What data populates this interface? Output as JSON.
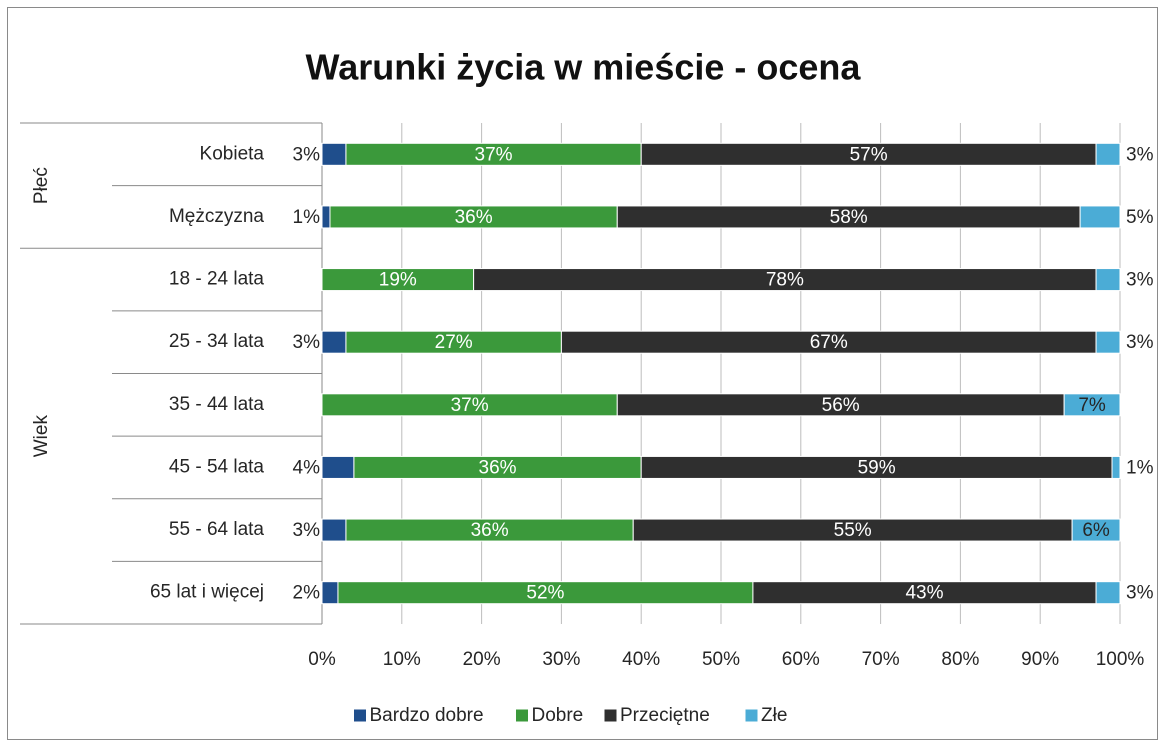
{
  "chart_data": {
    "type": "bar",
    "orientation": "horizontal",
    "stacked": true,
    "title": "Warunki życia w mieście - ocena",
    "groups": [
      {
        "name": "Płeć",
        "categories": [
          "Kobieta",
          "Mężczyzna"
        ]
      },
      {
        "name": "Wiek",
        "categories": [
          "18 - 24 lata",
          "25 - 34 lata",
          "35 - 44 lata",
          "45 - 54 lata",
          "55 - 64 lata",
          "65 lat i więcej"
        ]
      }
    ],
    "series": [
      {
        "name": "Bardzo dobre",
        "color": "#1f4e8c",
        "values": [
          3,
          1,
          null,
          3,
          null,
          4,
          3,
          2
        ],
        "value_labels": [
          "3%",
          "1%",
          null,
          "3%",
          null,
          "4%",
          "3%",
          "2%"
        ]
      },
      {
        "name": "Dobre",
        "color": "#3b993b",
        "values": [
          37,
          36,
          19,
          27,
          37,
          36,
          36,
          52
        ],
        "value_labels": [
          "37%",
          "36%",
          "19%",
          "27%",
          "37%",
          "36%",
          "36%",
          "52%"
        ]
      },
      {
        "name": "Przeciętne",
        "color": "#2f2f2f",
        "values": [
          57,
          58,
          78,
          67,
          56,
          59,
          55,
          43
        ],
        "value_labels": [
          "57%",
          "58%",
          "78%",
          "67%",
          "56%",
          "59%",
          "55%",
          "43%"
        ]
      },
      {
        "name": "Złe",
        "color": "#4bacd6",
        "values": [
          3,
          5,
          3,
          3,
          7,
          1,
          6,
          3
        ],
        "value_labels": [
          "3%",
          "5%",
          "3%",
          "3%",
          "7%",
          "1%",
          "6%",
          "3%"
        ]
      }
    ],
    "xlim": [
      0,
      100
    ],
    "xticks": [
      {
        "value": 0,
        "label": "0%"
      },
      {
        "value": 10,
        "label": "10%"
      },
      {
        "value": 20,
        "label": "20%"
      },
      {
        "value": 30,
        "label": "30%"
      },
      {
        "value": 40,
        "label": "40%"
      },
      {
        "value": 50,
        "label": "50%"
      },
      {
        "value": 60,
        "label": "60%"
      },
      {
        "value": 70,
        "label": "70%"
      },
      {
        "value": 80,
        "label": "80%"
      },
      {
        "value": 90,
        "label": "90%"
      },
      {
        "value": 100,
        "label": "100%"
      }
    ],
    "grid": true,
    "legend": "bottom"
  }
}
